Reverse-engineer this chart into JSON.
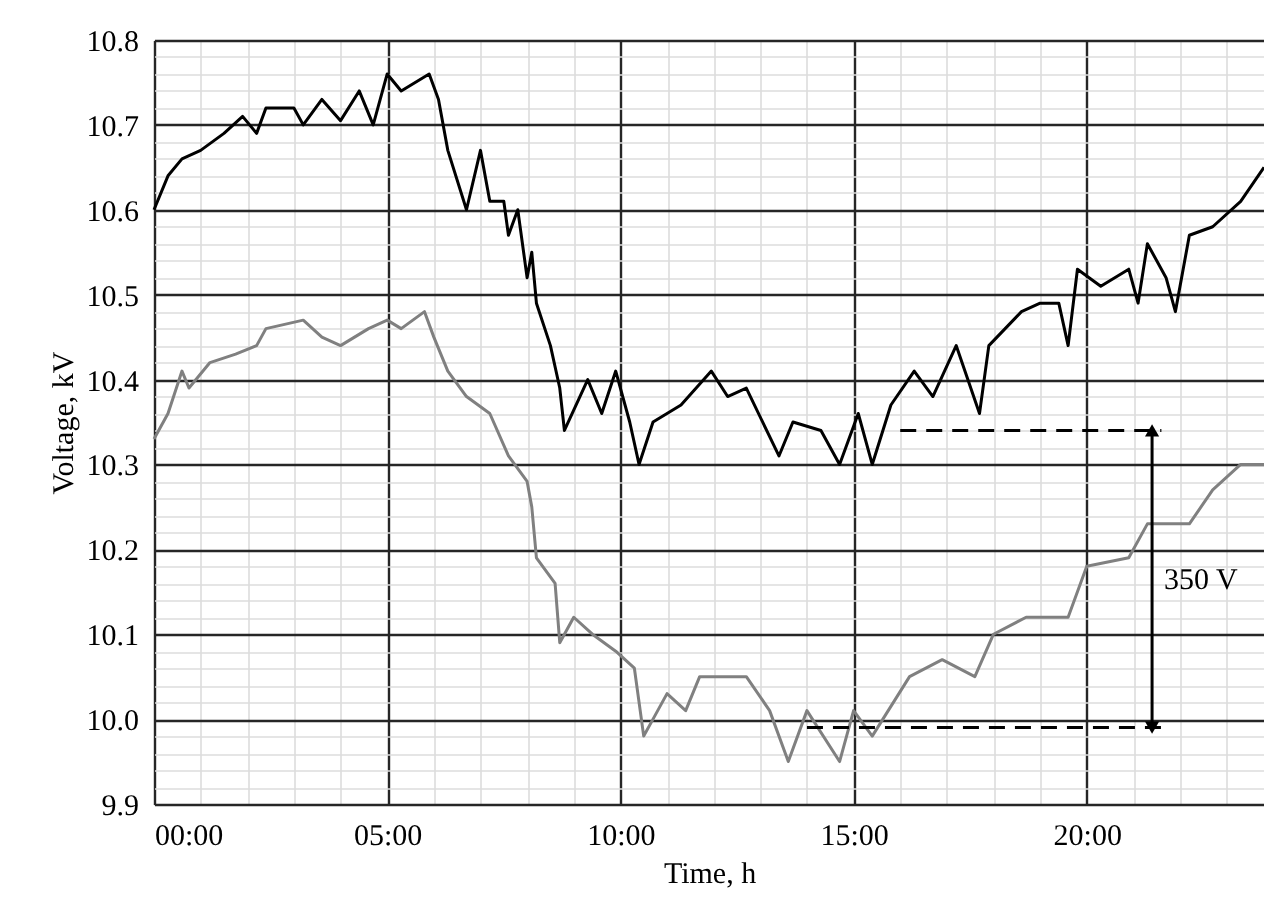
{
  "chart_data": {
    "type": "line",
    "xlabel": "Time, h",
    "ylabel": "Voltage, kV",
    "xlim": [
      0,
      23.8
    ],
    "ylim": [
      9.9,
      10.8
    ],
    "grid": true,
    "xticks": [
      {
        "value": 0,
        "label": "00:00"
      },
      {
        "value": 1,
        "label": null
      },
      {
        "value": 2,
        "label": null
      },
      {
        "value": 3,
        "label": null
      },
      {
        "value": 4,
        "label": null
      },
      {
        "value": 5,
        "label": "05:00"
      },
      {
        "value": 6,
        "label": null
      },
      {
        "value": 7,
        "label": null
      },
      {
        "value": 8,
        "label": null
      },
      {
        "value": 9,
        "label": null
      },
      {
        "value": 10,
        "label": "10:00"
      },
      {
        "value": 11,
        "label": null
      },
      {
        "value": 12,
        "label": null
      },
      {
        "value": 13,
        "label": null
      },
      {
        "value": 14,
        "label": null
      },
      {
        "value": 15,
        "label": "15:00"
      },
      {
        "value": 16,
        "label": null
      },
      {
        "value": 17,
        "label": null
      },
      {
        "value": 18,
        "label": null
      },
      {
        "value": 19,
        "label": null
      },
      {
        "value": 20,
        "label": "20:00"
      },
      {
        "value": 21,
        "label": null
      },
      {
        "value": 22,
        "label": null
      },
      {
        "value": 23,
        "label": null
      }
    ],
    "yticks": [
      9.9,
      {
        "value": 9.92,
        "label": null
      },
      {
        "value": 9.94,
        "label": null
      },
      {
        "value": 9.96,
        "label": null
      },
      {
        "value": 9.98,
        "label": null
      },
      {
        "value": 10,
        "label": "10.0"
      },
      {
        "value": 10.02,
        "label": null
      },
      {
        "value": 10.04,
        "label": null
      },
      {
        "value": 10.06,
        "label": null
      },
      {
        "value": 10.08,
        "label": null
      },
      10.1,
      {
        "value": 10.12,
        "label": null
      },
      {
        "value": 10.14,
        "label": null
      },
      {
        "value": 10.16,
        "label": null
      },
      {
        "value": 10.18,
        "label": null
      },
      10.2,
      {
        "value": 10.22,
        "label": null
      },
      {
        "value": 10.24,
        "label": null
      },
      {
        "value": 10.26,
        "label": null
      },
      {
        "value": 10.28,
        "label": null
      },
      10.3,
      {
        "value": 10.32,
        "label": null
      },
      {
        "value": 10.34,
        "label": null
      },
      {
        "value": 10.36,
        "label": null
      },
      {
        "value": 10.38,
        "label": null
      },
      10.4,
      {
        "value": 10.42,
        "label": null
      },
      {
        "value": 10.44,
        "label": null
      },
      {
        "value": 10.46,
        "label": null
      },
      {
        "value": 10.48,
        "label": null
      },
      10.5,
      {
        "value": 10.52,
        "label": null
      },
      {
        "value": 10.54,
        "label": null
      },
      {
        "value": 10.56,
        "label": null
      },
      {
        "value": 10.58,
        "label": null
      },
      10.6,
      {
        "value": 10.62,
        "label": null
      },
      {
        "value": 10.64,
        "label": null
      },
      {
        "value": 10.66,
        "label": null
      },
      {
        "value": 10.68,
        "label": null
      },
      10.7,
      {
        "value": 10.72,
        "label": null
      },
      {
        "value": 10.74,
        "label": null
      },
      {
        "value": 10.76,
        "label": null
      },
      {
        "value": 10.78,
        "label": null
      },
      10.8
    ],
    "series": [
      {
        "color": "#000000",
        "x": [
          0.0,
          0.3,
          0.6,
          1.0,
          1.5,
          1.9,
          2.2,
          2.4,
          3.0,
          3.2,
          3.6,
          4.0,
          4.4,
          4.7,
          5.0,
          5.3,
          5.9,
          6.1,
          6.3,
          6.7,
          7.0,
          7.2,
          7.5,
          7.6,
          7.8,
          8.0,
          8.1,
          8.2,
          8.5,
          8.7,
          8.8,
          9.3,
          9.6,
          9.9,
          10.2,
          10.4,
          10.7,
          11.3,
          11.95,
          12.3,
          12.7,
          13.4,
          13.7,
          14.3,
          14.7,
          15.1,
          15.4,
          15.8,
          16.3,
          16.7,
          17.2,
          17.7,
          17.9,
          18.6,
          19.0,
          19.4,
          19.6,
          19.8,
          20.3,
          20.9,
          21.1,
          21.3,
          21.7,
          21.9,
          22.2,
          22.7,
          23.3,
          23.8
        ],
        "values": [
          10.6,
          10.64,
          10.66,
          10.67,
          10.69,
          10.71,
          10.69,
          10.72,
          10.72,
          10.7,
          10.73,
          10.705,
          10.74,
          10.7,
          10.76,
          10.74,
          10.76,
          10.73,
          10.67,
          10.6,
          10.67,
          10.61,
          10.61,
          10.57,
          10.6,
          10.52,
          10.55,
          10.49,
          10.44,
          10.39,
          10.34,
          10.4,
          10.36,
          10.41,
          10.35,
          10.3,
          10.35,
          10.37,
          10.41,
          10.38,
          10.39,
          10.31,
          10.35,
          10.34,
          10.3,
          10.36,
          10.3,
          10.37,
          10.41,
          10.38,
          10.44,
          10.36,
          10.44,
          10.48,
          10.49,
          10.49,
          10.44,
          10.53,
          10.51,
          10.53,
          10.49,
          10.56,
          10.52,
          10.48,
          10.57,
          10.58,
          10.61,
          10.65
        ]
      },
      {
        "color": "#808080",
        "x": [
          0.0,
          0.3,
          0.6,
          0.75,
          1.2,
          1.75,
          2.2,
          2.4,
          3.2,
          3.6,
          4.0,
          4.6,
          5.0,
          5.3,
          5.8,
          6.0,
          6.3,
          6.7,
          7.2,
          7.6,
          8.0,
          8.1,
          8.2,
          8.6,
          8.7,
          9.0,
          9.4,
          9.9,
          10.3,
          10.5,
          10.7,
          11.0,
          11.4,
          11.7,
          12.3,
          12.7,
          13.2,
          13.6,
          14.0,
          14.7,
          15.0,
          15.4,
          16.2,
          16.9,
          17.6,
          18.0,
          18.7,
          19.6,
          20.0,
          20.9,
          21.3,
          22.2,
          22.7,
          23.3,
          23.8
        ],
        "values": [
          10.33,
          10.36,
          10.41,
          10.39,
          10.42,
          10.43,
          10.44,
          10.46,
          10.47,
          10.45,
          10.44,
          10.46,
          10.47,
          10.46,
          10.48,
          10.45,
          10.41,
          10.38,
          10.36,
          10.31,
          10.28,
          10.25,
          10.19,
          10.16,
          10.09,
          10.12,
          10.1,
          10.08,
          10.06,
          9.98,
          10.0,
          10.03,
          10.01,
          10.05,
          10.05,
          10.05,
          10.01,
          9.95,
          10.01,
          9.95,
          10.01,
          9.98,
          10.05,
          10.07,
          10.05,
          10.1,
          10.12,
          10.12,
          10.18,
          10.19,
          10.23,
          10.23,
          10.27,
          10.3,
          10.3
        ]
      },
      {
        "color": "#000000",
        "line_style": "dashed",
        "x": [
          16.0,
          21.6
        ],
        "values": [
          10.34,
          10.34
        ]
      },
      {
        "color": "#000000",
        "line_style": "dashed",
        "x": [
          14.0,
          21.6
        ],
        "values": [
          9.99,
          9.99
        ]
      },
      {
        "color": "#000000",
        "marker": "triangle",
        "x": [
          21.4,
          21.4
        ],
        "values": [
          10.34,
          9.99
        ]
      }
    ],
    "annotations": [
      "350 V"
    ]
  }
}
